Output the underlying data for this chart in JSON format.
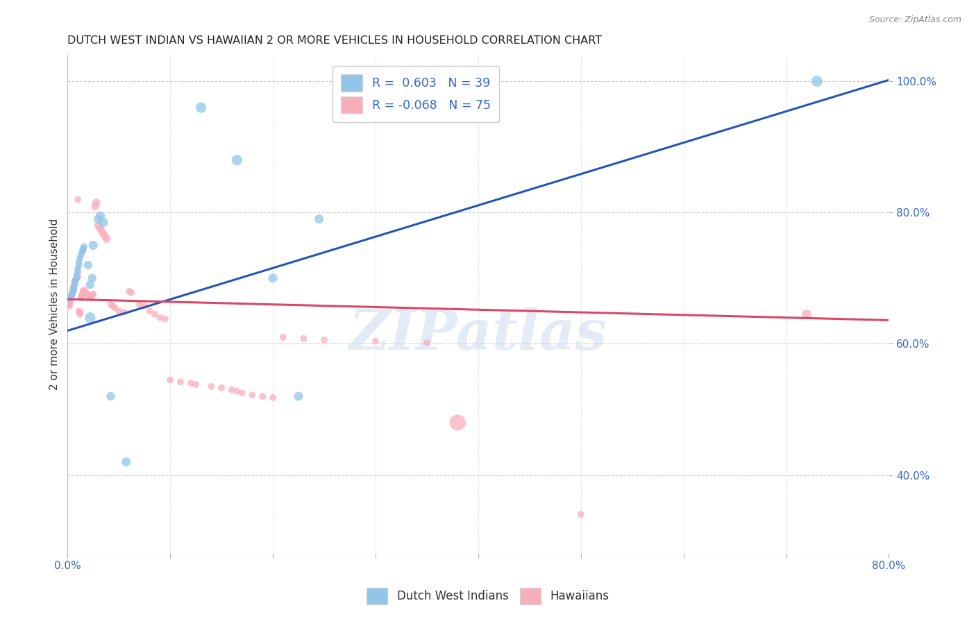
{
  "title": "DUTCH WEST INDIAN VS HAWAIIAN 2 OR MORE VEHICLES IN HOUSEHOLD CORRELATION CHART",
  "source": "Source: ZipAtlas.com",
  "ylabel": "2 or more Vehicles in Household",
  "xmin": 0.0,
  "xmax": 0.8,
  "ymin": 0.28,
  "ymax": 1.04,
  "xtick_vals": [
    0.0,
    0.1,
    0.2,
    0.3,
    0.4,
    0.5,
    0.6,
    0.7,
    0.8
  ],
  "xticklabels": [
    "0.0%",
    "",
    "",
    "",
    "",
    "",
    "",
    "",
    "80.0%"
  ],
  "yticks_right": [
    0.4,
    0.6,
    0.8,
    1.0
  ],
  "ytick_labels_right": [
    "40.0%",
    "60.0%",
    "80.0%",
    "100.0%"
  ],
  "legend_r_blue": "R =  0.603",
  "legend_n_blue": "N = 39",
  "legend_r_pink": "R = -0.068",
  "legend_n_pink": "N = 75",
  "blue_color": "#92C5E8",
  "pink_color": "#F9AEBB",
  "blue_line_color": "#2255BB",
  "pink_line_color": "#DD4466",
  "watermark_text": "ZIPatlas",
  "blue_points": [
    [
      0.001,
      0.67
    ],
    [
      0.002,
      0.668
    ],
    [
      0.003,
      0.672
    ],
    [
      0.004,
      0.675
    ],
    [
      0.005,
      0.678
    ],
    [
      0.005,
      0.68
    ],
    [
      0.006,
      0.682
    ],
    [
      0.006,
      0.685
    ],
    [
      0.007,
      0.69
    ],
    [
      0.007,
      0.695
    ],
    [
      0.008,
      0.698
    ],
    [
      0.009,
      0.7
    ],
    [
      0.009,
      0.705
    ],
    [
      0.01,
      0.71
    ],
    [
      0.01,
      0.715
    ],
    [
      0.011,
      0.72
    ],
    [
      0.011,
      0.725
    ],
    [
      0.012,
      0.73
    ],
    [
      0.013,
      0.735
    ],
    [
      0.014,
      0.74
    ],
    [
      0.015,
      0.742
    ],
    [
      0.015,
      0.745
    ],
    [
      0.016,
      0.748
    ],
    [
      0.02,
      0.72
    ],
    [
      0.022,
      0.69
    ],
    [
      0.022,
      0.64
    ],
    [
      0.024,
      0.7
    ],
    [
      0.025,
      0.75
    ],
    [
      0.03,
      0.79
    ],
    [
      0.032,
      0.795
    ],
    [
      0.035,
      0.785
    ],
    [
      0.042,
      0.52
    ],
    [
      0.057,
      0.42
    ],
    [
      0.13,
      0.96
    ],
    [
      0.165,
      0.88
    ],
    [
      0.2,
      0.7
    ],
    [
      0.225,
      0.52
    ],
    [
      0.245,
      0.79
    ],
    [
      0.73,
      1.0
    ]
  ],
  "blue_sizes": [
    50,
    50,
    50,
    50,
    50,
    50,
    50,
    50,
    50,
    50,
    50,
    50,
    50,
    50,
    50,
    50,
    50,
    50,
    50,
    50,
    50,
    50,
    50,
    80,
    80,
    120,
    80,
    90,
    90,
    90,
    90,
    80,
    90,
    120,
    120,
    90,
    90,
    90,
    130
  ],
  "pink_points": [
    [
      0.001,
      0.66
    ],
    [
      0.002,
      0.658
    ],
    [
      0.002,
      0.662
    ],
    [
      0.003,
      0.665
    ],
    [
      0.003,
      0.668
    ],
    [
      0.004,
      0.672
    ],
    [
      0.004,
      0.675
    ],
    [
      0.005,
      0.678
    ],
    [
      0.005,
      0.682
    ],
    [
      0.006,
      0.685
    ],
    [
      0.006,
      0.688
    ],
    [
      0.007,
      0.692
    ],
    [
      0.007,
      0.695
    ],
    [
      0.008,
      0.698
    ],
    [
      0.009,
      0.7
    ],
    [
      0.01,
      0.703
    ],
    [
      0.01,
      0.82
    ],
    [
      0.011,
      0.65
    ],
    [
      0.012,
      0.648
    ],
    [
      0.012,
      0.645
    ],
    [
      0.013,
      0.67
    ],
    [
      0.014,
      0.672
    ],
    [
      0.014,
      0.675
    ],
    [
      0.015,
      0.678
    ],
    [
      0.015,
      0.68
    ],
    [
      0.016,
      0.682
    ],
    [
      0.017,
      0.68
    ],
    [
      0.018,
      0.678
    ],
    [
      0.019,
      0.676
    ],
    [
      0.02,
      0.674
    ],
    [
      0.021,
      0.672
    ],
    [
      0.022,
      0.67
    ],
    [
      0.023,
      0.672
    ],
    [
      0.024,
      0.674
    ],
    [
      0.025,
      0.676
    ],
    [
      0.027,
      0.81
    ],
    [
      0.028,
      0.815
    ],
    [
      0.03,
      0.78
    ],
    [
      0.032,
      0.775
    ],
    [
      0.034,
      0.77
    ],
    [
      0.036,
      0.765
    ],
    [
      0.038,
      0.76
    ],
    [
      0.042,
      0.66
    ],
    [
      0.044,
      0.658
    ],
    [
      0.046,
      0.655
    ],
    [
      0.05,
      0.65
    ],
    [
      0.055,
      0.648
    ],
    [
      0.06,
      0.68
    ],
    [
      0.062,
      0.678
    ],
    [
      0.07,
      0.66
    ],
    [
      0.075,
      0.658
    ],
    [
      0.08,
      0.65
    ],
    [
      0.085,
      0.645
    ],
    [
      0.09,
      0.64
    ],
    [
      0.095,
      0.638
    ],
    [
      0.1,
      0.545
    ],
    [
      0.11,
      0.542
    ],
    [
      0.12,
      0.54
    ],
    [
      0.125,
      0.538
    ],
    [
      0.14,
      0.535
    ],
    [
      0.15,
      0.533
    ],
    [
      0.16,
      0.53
    ],
    [
      0.165,
      0.528
    ],
    [
      0.17,
      0.525
    ],
    [
      0.18,
      0.522
    ],
    [
      0.19,
      0.52
    ],
    [
      0.2,
      0.518
    ],
    [
      0.21,
      0.61
    ],
    [
      0.23,
      0.608
    ],
    [
      0.25,
      0.606
    ],
    [
      0.3,
      0.604
    ],
    [
      0.35,
      0.602
    ],
    [
      0.38,
      0.48
    ],
    [
      0.5,
      0.34
    ],
    [
      0.72,
      0.645
    ]
  ],
  "pink_sizes": [
    50,
    50,
    50,
    50,
    50,
    50,
    50,
    50,
    50,
    50,
    50,
    50,
    50,
    50,
    50,
    50,
    50,
    50,
    50,
    50,
    50,
    50,
    50,
    50,
    50,
    50,
    50,
    50,
    50,
    50,
    50,
    50,
    50,
    50,
    50,
    70,
    70,
    70,
    70,
    70,
    70,
    70,
    50,
    50,
    50,
    50,
    50,
    50,
    50,
    50,
    50,
    50,
    50,
    50,
    50,
    50,
    50,
    50,
    50,
    50,
    50,
    50,
    50,
    50,
    50,
    50,
    50,
    50,
    50,
    50,
    50,
    50,
    280,
    50,
    100
  ],
  "blue_trend_x": [
    0.0,
    0.8
  ],
  "blue_trend_y": [
    0.62,
    1.002
  ],
  "pink_trend_x": [
    0.0,
    0.8
  ],
  "pink_trend_y": [
    0.668,
    0.636
  ]
}
